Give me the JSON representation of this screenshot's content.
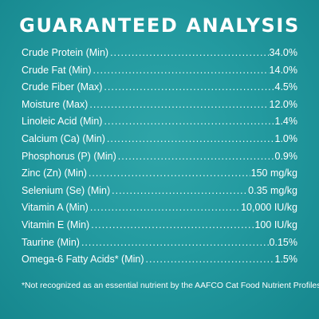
{
  "title": "GUARANTEED ANALYSIS",
  "colors": {
    "background": "#239aa0",
    "text": "#ffffff"
  },
  "leader": "...............................................................................................................................",
  "rows": [
    {
      "label": "Crude Protein (Min)",
      "value": "34.0%"
    },
    {
      "label": "Crude Fat (Min)",
      "value": "14.0%"
    },
    {
      "label": "Crude Fiber (Max)",
      "value": "4.5%"
    },
    {
      "label": "Moisture (Max)",
      "value": "12.0%"
    },
    {
      "label": "Linoleic Acid (Min)",
      "value": "1.4%"
    },
    {
      "label": "Calcium (Ca) (Min)",
      "value": "1.0%"
    },
    {
      "label": "Phosphorus (P) (Min)",
      "value": "0.9%"
    },
    {
      "label": "Zinc (Zn) (Min)",
      "value": "150 mg/kg"
    },
    {
      "label": "Selenium (Se) (Min)",
      "value": "0.35 mg/kg"
    },
    {
      "label": "Vitamin A (Min)",
      "value": "10,000 IU/kg"
    },
    {
      "label": "Vitamin E (Min)",
      "value": "100 IU/kg"
    },
    {
      "label": "Taurine (Min)",
      "value": "0.15%"
    },
    {
      "label": "Omega-6 Fatty Acids* (Min)",
      "value": "1.5%"
    }
  ],
  "footnote": "*Not recognized as an essential nutrient by the AAFCO Cat Food Nutrient Profiles."
}
